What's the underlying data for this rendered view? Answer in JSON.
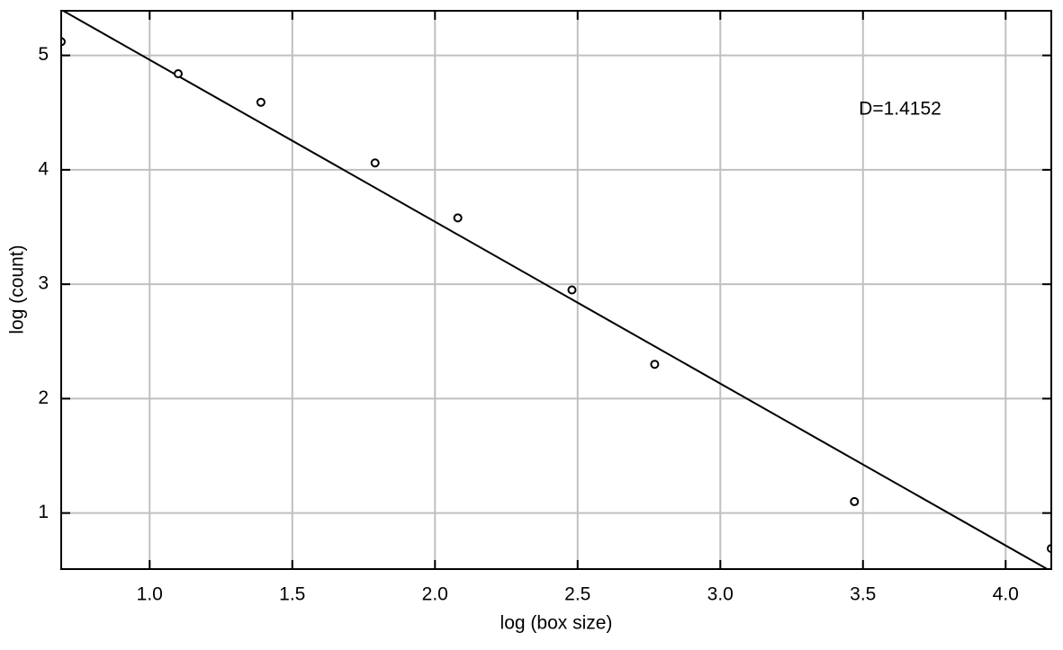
{
  "chart_data": {
    "type": "scatter",
    "x_label": "log (box size)",
    "y_label": "log (count)",
    "annotation": "D=1.4152",
    "x": [
      0.69,
      1.1,
      1.39,
      1.79,
      2.08,
      2.48,
      2.77,
      3.47,
      4.16
    ],
    "values": [
      5.12,
      4.84,
      4.59,
      4.06,
      3.58,
      2.95,
      2.3,
      1.1,
      0.69
    ],
    "color": "#000000",
    "fit_line": {
      "x": [
        0.69,
        4.16
      ],
      "values": [
        5.4,
        0.49
      ],
      "color": "#000000"
    },
    "xlim": [
      0.69,
      4.16
    ],
    "ylim": [
      0.51,
      5.39
    ],
    "xticks": [
      {
        "value": 1.0,
        "label": "1.0"
      },
      {
        "value": 1.5,
        "label": "1.5"
      },
      {
        "value": 2.0,
        "label": "2.0"
      },
      {
        "value": 2.5,
        "label": "2.5"
      },
      {
        "value": 3.0,
        "label": "3.0"
      },
      {
        "value": 3.5,
        "label": "3.5"
      },
      {
        "value": 4.0,
        "label": "4.0"
      }
    ],
    "yticks": [
      1,
      2,
      3,
      4,
      5
    ],
    "grid": true
  }
}
